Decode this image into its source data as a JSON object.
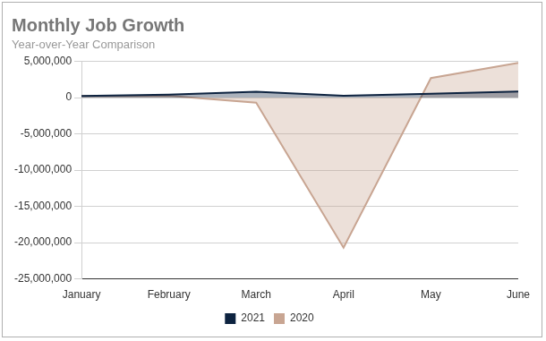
{
  "chart_data": {
    "type": "area",
    "title": "Monthly Job Growth",
    "subtitle": "Year-over-Year Comparison",
    "categories": [
      "January",
      "February",
      "March",
      "April",
      "May",
      "June"
    ],
    "series": [
      {
        "name": "2021",
        "color": "#0d2340",
        "values": [
          230000,
          400000,
          800000,
          250000,
          550000,
          850000
        ]
      },
      {
        "name": "2020",
        "color": "#c8a592",
        "values": [
          214000,
          251000,
          -700000,
          -20700000,
          2700000,
          4800000
        ]
      }
    ],
    "ylim": [
      -25000000,
      5000000
    ],
    "yticks": [
      {
        "value": -25000000,
        "label": "-25,000,000"
      },
      {
        "value": -20000000,
        "label": "-20,000,000"
      },
      {
        "value": -15000000,
        "label": "-15,000,000"
      },
      {
        "value": -10000000,
        "label": "-10,000,000"
      },
      {
        "value": -5000000,
        "label": "-5,000,000"
      },
      0,
      {
        "value": 5000000,
        "label": "5,000,000"
      }
    ],
    "grid": true,
    "legend": "bottom"
  }
}
